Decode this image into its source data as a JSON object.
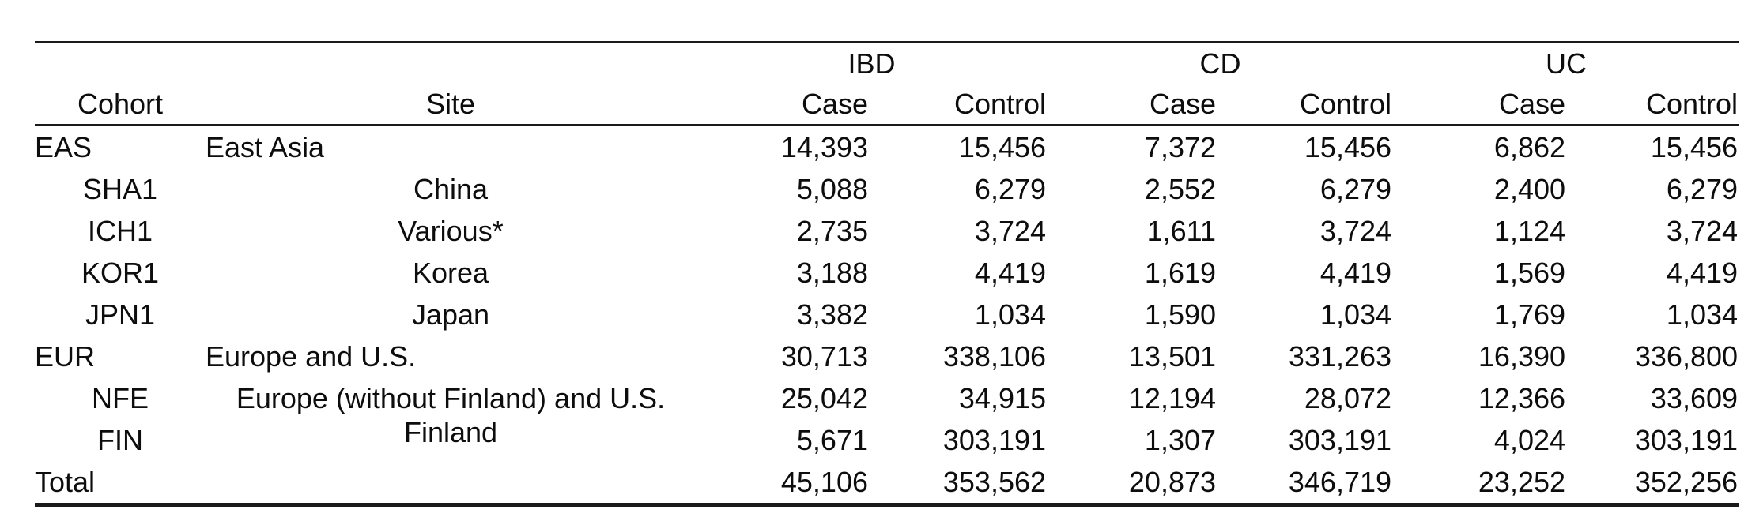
{
  "colors": {
    "background": "#ffffff",
    "text": "#0d0d0d",
    "rule": "#1a1a1a"
  },
  "table": {
    "group_headers": [
      "IBD",
      "CD",
      "UC"
    ],
    "columns": [
      "Cohort",
      "Site",
      "Case",
      "Control",
      "Case",
      "Control",
      "Case",
      "Control"
    ],
    "rows": [
      {
        "cohort": "EAS",
        "site": "East Asia",
        "values": [
          "14,393",
          "15,456",
          "7,372",
          "15,456",
          "6,862",
          "15,456"
        ]
      },
      {
        "cohort": "SHA1",
        "site": "China",
        "values": [
          "5,088",
          "6,279",
          "2,552",
          "6,279",
          "2,400",
          "6,279"
        ]
      },
      {
        "cohort": "ICH1",
        "site": "Various*",
        "values": [
          "2,735",
          "3,724",
          "1,611",
          "3,724",
          "1,124",
          "3,724"
        ]
      },
      {
        "cohort": "KOR1",
        "site": "Korea",
        "values": [
          "3,188",
          "4,419",
          "1,619",
          "4,419",
          "1,569",
          "4,419"
        ]
      },
      {
        "cohort": "JPN1",
        "site": "Japan",
        "values": [
          "3,382",
          "1,034",
          "1,590",
          "1,034",
          "1,769",
          "1,034"
        ]
      },
      {
        "cohort": "EUR",
        "site": "Europe and U.S.",
        "values": [
          "30,713",
          "338,106",
          "13,501",
          "331,263",
          "16,390",
          "336,800"
        ]
      },
      {
        "cohort": "NFE",
        "site": "Europe (without Finland) and U.S.",
        "values": [
          "25,042",
          "34,915",
          "12,194",
          "28,072",
          "12,366",
          "33,609"
        ]
      },
      {
        "cohort": "FIN",
        "site": "Finland",
        "values": [
          "5,671",
          "303,191",
          "1,307",
          "303,191",
          "4,024",
          "303,191"
        ]
      },
      {
        "cohort": "Total",
        "site": "",
        "values": [
          "45,106",
          "353,562",
          "20,873",
          "346,719",
          "23,252",
          "352,256"
        ]
      }
    ]
  }
}
